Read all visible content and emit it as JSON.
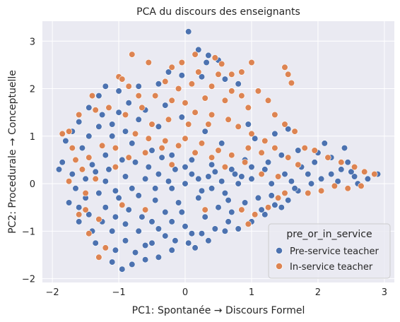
{
  "chart_data": {
    "type": "scatter",
    "title": "PCA du discours des enseignants",
    "xlabel": "PC1: Spontanée → Discours Formel",
    "ylabel": "PC2: Procedurale → Conceptuelle",
    "xlim": [
      -2.15,
      3.15
    ],
    "ylim": [
      -2.08,
      3.42
    ],
    "x_ticks": [
      -2,
      -1,
      0,
      1,
      2,
      3
    ],
    "y_ticks": [
      -2,
      -1,
      0,
      1,
      2,
      3
    ],
    "grid": true,
    "legend": {
      "title": "pre_or_in_service",
      "placement": "lower-right"
    },
    "background": "#eaeaf2",
    "grid_color": "#ffffff",
    "marker_edge": "#ffffff",
    "series": [
      {
        "name": "Pre-service teacher",
        "color": "#4c72b0",
        "points": [
          [
            0.05,
            3.2
          ],
          [
            0.2,
            2.82
          ],
          [
            0.35,
            2.7
          ],
          [
            0.5,
            2.6
          ],
          [
            0.32,
            2.55
          ],
          [
            -0.25,
            2.35
          ],
          [
            -0.05,
            2.28
          ],
          [
            0.25,
            2.25
          ],
          [
            -0.4,
            2.1
          ],
          [
            -0.7,
            2.05
          ],
          [
            0.6,
            2.2
          ],
          [
            0.8,
            2.1
          ],
          [
            -1.2,
            2.05
          ],
          [
            -1.0,
            1.95
          ],
          [
            -1.3,
            1.85
          ],
          [
            -1.45,
            1.6
          ],
          [
            -1.6,
            1.3
          ],
          [
            -1.7,
            1.1
          ],
          [
            -1.8,
            0.9
          ],
          [
            -1.85,
            0.45
          ],
          [
            -1.9,
            0.3
          ],
          [
            -1.7,
            0.2
          ],
          [
            -1.65,
            -0.1
          ],
          [
            -1.75,
            -0.4
          ],
          [
            -1.6,
            -0.8
          ],
          [
            -1.4,
            -1.0
          ],
          [
            -1.35,
            -1.25
          ],
          [
            -1.3,
            -1.55
          ],
          [
            -1.1,
            -1.65
          ],
          [
            -0.95,
            -1.8
          ],
          [
            -0.8,
            -1.7
          ],
          [
            -0.6,
            -1.6
          ],
          [
            -0.4,
            -1.55
          ],
          [
            -0.2,
            -1.4
          ],
          [
            0.15,
            -1.35
          ],
          [
            0.35,
            -1.2
          ],
          [
            0.6,
            -1.0
          ],
          [
            0.8,
            -0.95
          ],
          [
            1.0,
            -0.8
          ],
          [
            1.2,
            -0.65
          ],
          [
            1.45,
            -0.5
          ],
          [
            1.55,
            -0.35
          ],
          [
            1.7,
            -0.15
          ],
          [
            1.9,
            0.0
          ],
          [
            2.05,
            0.1
          ],
          [
            2.2,
            0.2
          ],
          [
            2.35,
            0.3
          ],
          [
            2.55,
            0.15
          ],
          [
            2.75,
            0.1
          ],
          [
            2.9,
            0.2
          ],
          [
            2.6,
            0.0
          ],
          [
            2.2,
            0.55
          ],
          [
            2.4,
            0.75
          ],
          [
            2.1,
            0.85
          ],
          [
            1.55,
            1.15
          ],
          [
            1.35,
            1.05
          ],
          [
            0.95,
            1.25
          ],
          [
            1.05,
            0.95
          ],
          [
            0.9,
            0.5
          ],
          [
            1.2,
            0.3
          ],
          [
            1.5,
            0.2
          ],
          [
            1.75,
            0.35
          ],
          [
            1.95,
            0.45
          ],
          [
            0.7,
            0.3
          ],
          [
            0.4,
            0.4
          ],
          [
            0.1,
            0.5
          ],
          [
            -0.2,
            0.6
          ],
          [
            -0.5,
            0.7
          ],
          [
            -0.8,
            0.85
          ],
          [
            -1.1,
            1.0
          ],
          [
            -1.3,
            1.2
          ],
          [
            -1.0,
            1.5
          ],
          [
            -0.7,
            1.35
          ],
          [
            -0.9,
            1.1
          ],
          [
            -0.4,
            1.2
          ],
          [
            -1.2,
            0.6
          ],
          [
            -1.4,
            0.4
          ],
          [
            -1.5,
            0.1
          ],
          [
            -1.3,
            -0.2
          ],
          [
            -1.2,
            -0.5
          ],
          [
            -1.0,
            -0.3
          ],
          [
            -0.8,
            -0.1
          ],
          [
            -0.6,
            0.1
          ],
          [
            -0.4,
            0.2
          ],
          [
            -0.2,
            -0.1
          ],
          [
            0.0,
            0.0
          ],
          [
            0.2,
            0.1
          ],
          [
            0.4,
            -0.1
          ],
          [
            0.6,
            -0.2
          ],
          [
            0.8,
            0.0
          ],
          [
            1.0,
            0.1
          ],
          [
            1.3,
            0.0
          ],
          [
            1.6,
            0.05
          ],
          [
            -0.1,
            -0.4
          ],
          [
            -0.3,
            -0.6
          ],
          [
            -0.5,
            -0.8
          ],
          [
            -0.7,
            -1.0
          ],
          [
            -0.9,
            -1.2
          ],
          [
            -1.1,
            -1.0
          ],
          [
            -1.25,
            -0.8
          ],
          [
            -0.6,
            -1.3
          ],
          [
            -0.3,
            -1.1
          ],
          [
            0.0,
            -0.9
          ],
          [
            0.3,
            -0.7
          ],
          [
            0.5,
            -0.5
          ],
          [
            0.7,
            -0.6
          ],
          [
            0.9,
            -0.4
          ],
          [
            1.1,
            -0.3
          ],
          [
            1.3,
            -0.25
          ],
          [
            0.2,
            -0.3
          ],
          [
            -0.05,
            -0.6
          ],
          [
            -0.45,
            -0.35
          ],
          [
            -0.85,
            -0.55
          ],
          [
            -1.05,
            -0.7
          ],
          [
            -1.15,
            0.3
          ],
          [
            -0.95,
            0.5
          ],
          [
            -0.75,
            0.45
          ],
          [
            -0.55,
            0.35
          ],
          [
            -0.35,
            0.55
          ],
          [
            -0.15,
            0.3
          ],
          [
            0.1,
            0.2
          ],
          [
            0.35,
            0.15
          ],
          [
            0.55,
            0.05
          ],
          [
            0.75,
            0.2
          ],
          [
            1.0,
            0.35
          ],
          [
            1.25,
            0.45
          ],
          [
            1.45,
            0.6
          ],
          [
            1.7,
            0.7
          ],
          [
            -1.55,
            0.75
          ],
          [
            -1.45,
            1.0
          ],
          [
            -1.25,
            1.45
          ],
          [
            -1.1,
            1.25
          ],
          [
            -0.85,
            1.7
          ],
          [
            -0.6,
            1.55
          ],
          [
            -0.3,
            1.65
          ],
          [
            -0.05,
            1.4
          ],
          [
            0.3,
            1.1
          ],
          [
            0.55,
            0.85
          ],
          [
            -1.6,
            -0.5
          ],
          [
            -1.45,
            -0.65
          ],
          [
            -1.5,
            -0.3
          ],
          [
            -0.2,
            -0.8
          ],
          [
            0.1,
            -1.05
          ],
          [
            0.45,
            -0.95
          ],
          [
            0.65,
            -0.8
          ],
          [
            -0.4,
            -0.95
          ],
          [
            -0.65,
            -0.7
          ],
          [
            -0.9,
            -0.85
          ],
          [
            -1.05,
            -1.4
          ],
          [
            -0.75,
            -1.45
          ],
          [
            -0.5,
            -1.25
          ],
          [
            -0.15,
            -1.2
          ],
          [
            0.05,
            -1.25
          ],
          [
            0.25,
            -1.05
          ],
          [
            1.15,
            -0.55
          ],
          [
            1.35,
            -0.45
          ],
          [
            2.45,
            0.45
          ],
          [
            2.0,
            0.65
          ],
          [
            1.85,
            0.2
          ],
          [
            1.65,
            -0.1
          ],
          [
            2.3,
            0.05
          ],
          [
            2.5,
            0.25
          ],
          [
            -1.35,
            0.25
          ],
          [
            -1.2,
            0.05
          ],
          [
            -1.05,
            -0.15
          ],
          [
            -0.9,
            0.15
          ],
          [
            -0.7,
            -0.25
          ],
          [
            -0.45,
            -0.1
          ],
          [
            -0.25,
            0.05
          ],
          [
            0.0,
            0.35
          ],
          [
            0.25,
            -0.15
          ],
          [
            0.45,
            0.25
          ],
          [
            0.65,
            -0.35
          ],
          [
            0.85,
            0.15
          ]
        ]
      },
      {
        "name": "In-service teacher",
        "color": "#dd8452",
        "points": [
          [
            -0.8,
            2.72
          ],
          [
            0.15,
            2.72
          ],
          [
            0.45,
            2.65
          ],
          [
            -0.55,
            2.55
          ],
          [
            -0.2,
            2.45
          ],
          [
            0.55,
            2.52
          ],
          [
            1.0,
            2.55
          ],
          [
            1.5,
            2.45
          ],
          [
            1.55,
            2.3
          ],
          [
            1.6,
            2.12
          ],
          [
            -1.0,
            2.25
          ],
          [
            -0.95,
            2.2
          ],
          [
            -0.3,
            2.15
          ],
          [
            -0.1,
            2.0
          ],
          [
            0.1,
            2.1
          ],
          [
            0.4,
            2.05
          ],
          [
            0.7,
            1.95
          ],
          [
            0.85,
            1.85
          ],
          [
            1.1,
            1.95
          ],
          [
            1.25,
            1.75
          ],
          [
            0.95,
            1.6
          ],
          [
            0.6,
            1.75
          ],
          [
            0.3,
            1.8
          ],
          [
            0.0,
            1.7
          ],
          [
            -0.2,
            1.75
          ],
          [
            -0.45,
            1.85
          ],
          [
            -0.65,
            1.6
          ],
          [
            -1.4,
            1.85
          ],
          [
            -1.6,
            1.45
          ],
          [
            -1.75,
            1.1
          ],
          [
            -1.85,
            1.05
          ],
          [
            -1.7,
            0.75
          ],
          [
            -1.65,
            0.5
          ],
          [
            -1.55,
            0.3
          ],
          [
            -1.6,
            -0.65
          ],
          [
            -1.5,
            -0.55
          ],
          [
            -1.3,
            -0.75
          ],
          [
            -1.3,
            -1.55
          ],
          [
            -1.2,
            -1.35
          ],
          [
            -1.45,
            -1.05
          ],
          [
            0.15,
            1.5
          ],
          [
            0.4,
            1.45
          ],
          [
            0.65,
            1.35
          ],
          [
            0.8,
            1.2
          ],
          [
            1.0,
            1.05
          ],
          [
            1.2,
            0.9
          ],
          [
            0.35,
            1.25
          ],
          [
            0.05,
            1.25
          ],
          [
            -0.25,
            1.35
          ],
          [
            -0.5,
            1.25
          ],
          [
            -0.75,
            1.05
          ],
          [
            -0.55,
            0.95
          ],
          [
            -0.3,
            0.9
          ],
          [
            0.0,
            0.95
          ],
          [
            0.25,
            0.85
          ],
          [
            0.5,
            0.7
          ],
          [
            -1.45,
            0.55
          ],
          [
            -1.25,
            0.8
          ],
          [
            -1.05,
            0.75
          ],
          [
            1.55,
            0.55
          ],
          [
            1.8,
            0.75
          ],
          [
            1.95,
            0.7
          ],
          [
            2.15,
            0.55
          ],
          [
            2.35,
            0.45
          ],
          [
            2.55,
            0.35
          ],
          [
            2.7,
            0.25
          ],
          [
            2.85,
            0.2
          ],
          [
            2.65,
            -0.05
          ],
          [
            2.45,
            -0.1
          ],
          [
            2.25,
            -0.05
          ],
          [
            2.05,
            -0.15
          ],
          [
            1.85,
            -0.2
          ],
          [
            1.4,
            -0.3
          ],
          [
            1.25,
            -0.5
          ],
          [
            1.05,
            -0.65
          ],
          [
            0.95,
            -0.85
          ],
          [
            0.85,
            -0.55
          ],
          [
            1.5,
            -0.2
          ],
          [
            -1.05,
            0.35
          ],
          [
            -0.85,
            0.55
          ],
          [
            -0.6,
            0.65
          ],
          [
            -0.35,
            0.75
          ],
          [
            -0.1,
            0.8
          ],
          [
            0.15,
            0.65
          ],
          [
            0.4,
            0.55
          ],
          [
            0.7,
            0.6
          ],
          [
            0.95,
            0.75
          ],
          [
            1.15,
            0.65
          ],
          [
            1.35,
            0.75
          ],
          [
            -1.35,
            1.55
          ],
          [
            -1.15,
            1.6
          ],
          [
            -0.9,
            1.45
          ],
          [
            -0.7,
            1.85
          ],
          [
            0.5,
            2.3
          ],
          [
            0.7,
            2.3
          ],
          [
            0.85,
            2.35
          ],
          [
            -0.05,
            2.55
          ],
          [
            0.2,
            2.35
          ],
          [
            -0.85,
            2.05
          ],
          [
            1.35,
            1.45
          ],
          [
            1.5,
            1.25
          ],
          [
            1.65,
            1.1
          ],
          [
            -0.2,
            0.4
          ],
          [
            -0.95,
            -0.45
          ],
          [
            -0.6,
            -0.55
          ],
          [
            0.3,
            -0.55
          ],
          [
            0.6,
            0.35
          ],
          [
            0.9,
            0.45
          ],
          [
            1.15,
            0.2
          ],
          [
            1.4,
            0.15
          ],
          [
            1.7,
            0.4
          ],
          [
            -1.75,
            0.05
          ],
          [
            -1.5,
            -0.2
          ],
          [
            -1.35,
            0.1
          ]
        ]
      }
    ]
  }
}
